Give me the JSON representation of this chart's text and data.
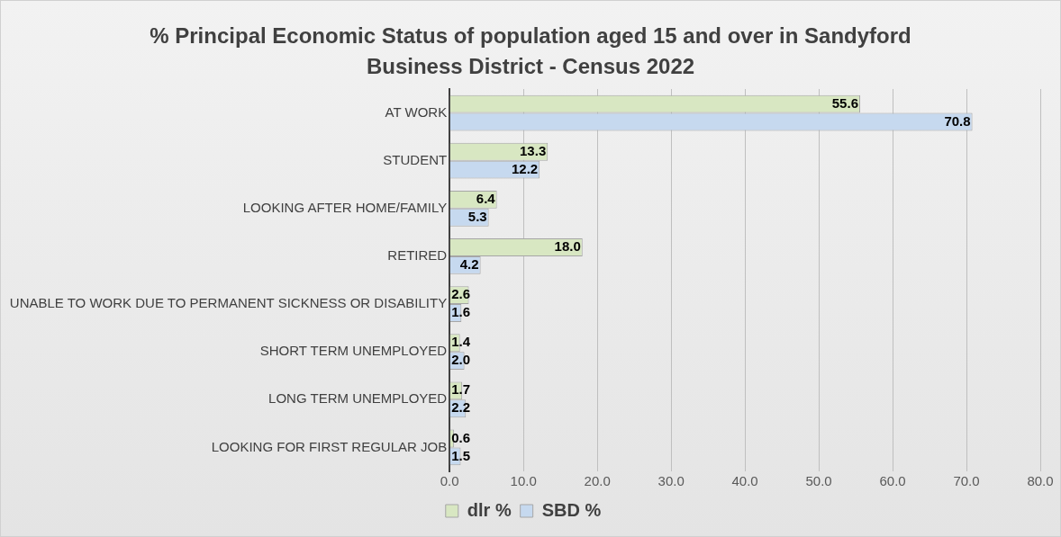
{
  "chart_data": {
    "type": "bar",
    "orientation": "horizontal",
    "title": "% Principal Economic Status of population aged 15 and over in Sandyford Business District - Census 2022",
    "categories": [
      "AT WORK",
      "STUDENT",
      "LOOKING AFTER HOME/FAMILY",
      "RETIRED",
      "UNABLE TO WORK DUE TO PERMANENT SICKNESS OR DISABILITY",
      "SHORT TERM UNEMPLOYED",
      "LONG TERM UNEMPLOYED",
      "LOOKING FOR FIRST REGULAR JOB"
    ],
    "series": [
      {
        "name": "dlr %",
        "color": "#d8e7c2",
        "values": [
          55.6,
          13.3,
          6.4,
          18.0,
          2.6,
          1.4,
          1.7,
          0.6
        ],
        "value_labels": [
          "55.6",
          "13.3",
          "6.4",
          "18.0",
          "2.6",
          "1.4",
          "1.7",
          "0.6"
        ]
      },
      {
        "name": "SBD %",
        "color": "#c6d9ef",
        "values": [
          70.8,
          12.2,
          5.3,
          4.2,
          1.6,
          2.0,
          2.2,
          1.5
        ],
        "value_labels": [
          "70.8",
          "12.2",
          "5.3",
          "4.2",
          "1.6",
          "2.0",
          "2.2",
          "1.5"
        ]
      }
    ],
    "xlim": [
      0,
      80
    ],
    "xticks": [
      {
        "value": 0,
        "label": "0.0"
      },
      {
        "value": 10,
        "label": "10.0"
      },
      {
        "value": 20,
        "label": "20.0"
      },
      {
        "value": 30,
        "label": "30.0"
      },
      {
        "value": 40,
        "label": "40.0"
      },
      {
        "value": 50,
        "label": "50.0"
      },
      {
        "value": 60,
        "label": "60.0"
      },
      {
        "value": 70,
        "label": "70.0"
      },
      {
        "value": 80,
        "label": "80.0"
      }
    ],
    "grid": "x",
    "legend": "bottom"
  }
}
